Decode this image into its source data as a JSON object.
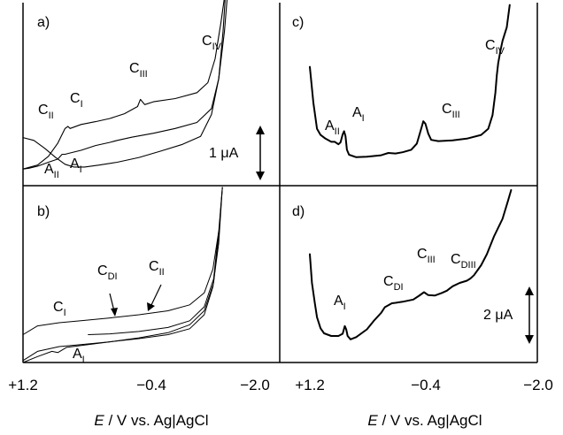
{
  "chart_data": [
    {
      "panel": "a)",
      "type": "line",
      "description_kind": "cyclic voltammogram",
      "x_range": [
        1.2,
        -2.0
      ],
      "scale_bar": {
        "label": "1 μA",
        "value_uA": 1
      },
      "series": [
        {
          "points": [
            [
              1.2,
              -0.28
            ],
            [
              1.05,
              -0.35
            ],
            [
              0.9,
              -0.55
            ],
            [
              0.75,
              -0.78
            ],
            [
              0.62,
              -0.95
            ],
            [
              0.5,
              -1.02
            ],
            [
              0.35,
              -1.02
            ],
            [
              0.15,
              -0.97
            ],
            [
              -0.1,
              -0.9
            ],
            [
              -0.4,
              -0.78
            ],
            [
              -0.7,
              -0.62
            ],
            [
              -1.0,
              -0.45
            ],
            [
              -1.25,
              -0.25
            ],
            [
              -1.4,
              0.3
            ],
            [
              -1.5,
              1.2
            ],
            [
              -1.56,
              2.4
            ],
            [
              -1.6,
              3.5
            ]
          ]
        },
        {
          "points": [
            [
              1.2,
              -1.07
            ],
            [
              1.0,
              -0.97
            ],
            [
              0.85,
              -0.75
            ],
            [
              0.72,
              -0.42
            ],
            [
              0.62,
              -0.05
            ],
            [
              0.58,
              0.0
            ],
            [
              0.55,
              -0.05
            ],
            [
              0.4,
              0.05
            ],
            [
              0.2,
              0.12
            ],
            [
              0.0,
              0.2
            ],
            [
              -0.2,
              0.32
            ],
            [
              -0.38,
              0.5
            ],
            [
              -0.42,
              0.68
            ],
            [
              -0.48,
              0.55
            ],
            [
              -0.6,
              0.62
            ],
            [
              -0.9,
              0.7
            ],
            [
              -1.2,
              0.85
            ],
            [
              -1.35,
              1.1
            ],
            [
              -1.45,
              1.7
            ],
            [
              -1.53,
              2.6
            ],
            [
              -1.6,
              3.5
            ]
          ]
        },
        {
          "points": [
            [
              1.2,
              -1.07
            ],
            [
              1.12,
              -1.05
            ],
            [
              1.0,
              -1.0
            ],
            [
              0.85,
              -0.9
            ],
            [
              0.72,
              -0.82
            ],
            [
              0.66,
              -0.7
            ],
            [
              0.62,
              -0.7
            ],
            [
              0.58,
              -0.68
            ],
            [
              0.4,
              -0.6
            ],
            [
              0.2,
              -0.48
            ],
            [
              0.0,
              -0.4
            ],
            [
              -0.1,
              -0.35
            ],
            [
              -0.3,
              -0.27
            ],
            [
              -0.6,
              -0.17
            ],
            [
              -0.9,
              -0.05
            ],
            [
              -1.2,
              0.1
            ],
            [
              -1.4,
              0.45
            ],
            [
              -1.5,
              1.2
            ],
            [
              -1.58,
              2.4
            ],
            [
              -1.62,
              3.3
            ]
          ]
        }
      ],
      "annotations": [
        {
          "base": "C",
          "sub": "II"
        },
        {
          "base": "C",
          "sub": "I"
        },
        {
          "base": "C",
          "sub": "III"
        },
        {
          "base": "C",
          "sub": "IV"
        },
        {
          "base": "A",
          "sub": "II"
        },
        {
          "base": "A",
          "sub": "I"
        }
      ]
    },
    {
      "panel": "b)",
      "type": "line",
      "description_kind": "cyclic voltammogram",
      "x_range": [
        1.2,
        -2.0
      ],
      "series": [
        {
          "points": [
            [
              1.2,
              -0.95
            ],
            [
              1.0,
              -0.72
            ],
            [
              0.7,
              -0.6
            ],
            [
              0.4,
              -0.55
            ],
            [
              0.0,
              -0.48
            ],
            [
              -0.4,
              -0.4
            ],
            [
              -0.8,
              -0.3
            ],
            [
              -1.1,
              -0.15
            ],
            [
              -1.3,
              0.2
            ],
            [
              -1.42,
              0.9
            ],
            [
              -1.5,
              2.0
            ],
            [
              -1.55,
              3.4
            ]
          ]
        },
        {
          "points": [
            [
              1.2,
              -0.3
            ],
            [
              1.0,
              -0.08
            ],
            [
              0.7,
              0.0
            ],
            [
              0.4,
              0.05
            ],
            [
              0.0,
              0.12
            ],
            [
              -0.4,
              0.2
            ],
            [
              -0.8,
              0.3
            ],
            [
              -1.1,
              0.45
            ],
            [
              -1.3,
              0.75
            ],
            [
              -1.42,
              1.35
            ],
            [
              -1.5,
              2.3
            ],
            [
              -1.55,
              3.4
            ]
          ]
        },
        {
          "points": [
            [
              1.2,
              -1.0
            ],
            [
              1.0,
              -0.85
            ],
            [
              0.8,
              -0.72
            ],
            [
              0.72,
              -0.75
            ],
            [
              0.6,
              -0.62
            ],
            [
              0.3,
              -0.55
            ],
            [
              0.0,
              -0.48
            ],
            [
              -0.4,
              -0.38
            ],
            [
              -0.8,
              -0.25
            ],
            [
              -1.1,
              -0.05
            ],
            [
              -1.3,
              0.3
            ],
            [
              -1.43,
              1.0
            ],
            [
              -1.5,
              2.2
            ],
            [
              -1.55,
              3.4
            ]
          ]
        },
        {
          "points": [
            [
              0.3,
              -0.3
            ],
            [
              0.0,
              -0.28
            ],
            [
              -0.4,
              -0.22
            ],
            [
              -0.8,
              -0.12
            ],
            [
              -1.1,
              0.05
            ],
            [
              -1.3,
              0.4
            ],
            [
              -1.43,
              1.1
            ],
            [
              -1.5,
              2.3
            ]
          ]
        }
      ],
      "annotations": [
        {
          "base": "C",
          "sub": "I"
        },
        {
          "base": "C",
          "sub": "DI"
        },
        {
          "base": "C",
          "sub": "II"
        },
        {
          "base": "A",
          "sub": "I"
        }
      ]
    },
    {
      "panel": "c)",
      "type": "line",
      "description_kind": "differential pulse voltammogram",
      "x_range": [
        1.2,
        -2.0
      ],
      "series": [
        {
          "points": [
            [
              1.2,
              3.55
            ],
            [
              1.15,
              2.1
            ],
            [
              1.1,
              1.05
            ],
            [
              1.05,
              0.8
            ],
            [
              0.98,
              0.65
            ],
            [
              0.9,
              0.52
            ],
            [
              0.85,
              0.52
            ],
            [
              0.8,
              0.42
            ],
            [
              0.77,
              0.5
            ],
            [
              0.74,
              0.82
            ],
            [
              0.72,
              0.95
            ],
            [
              0.7,
              0.75
            ],
            [
              0.68,
              0.2
            ],
            [
              0.65,
              0.0
            ],
            [
              0.55,
              -0.1
            ],
            [
              0.4,
              -0.08
            ],
            [
              0.2,
              -0.02
            ],
            [
              0.1,
              0.07
            ],
            [
              0.0,
              0.05
            ],
            [
              -0.1,
              0.1
            ],
            [
              -0.22,
              0.2
            ],
            [
              -0.3,
              0.45
            ],
            [
              -0.35,
              0.95
            ],
            [
              -0.39,
              1.35
            ],
            [
              -0.42,
              1.25
            ],
            [
              -0.46,
              0.85
            ],
            [
              -0.5,
              0.6
            ],
            [
              -0.6,
              0.55
            ],
            [
              -0.8,
              0.58
            ],
            [
              -1.0,
              0.65
            ],
            [
              -1.2,
              0.8
            ],
            [
              -1.3,
              1.05
            ],
            [
              -1.36,
              1.6
            ],
            [
              -1.4,
              2.5
            ],
            [
              -1.42,
              3.2
            ],
            [
              -1.44,
              3.7
            ],
            [
              -1.47,
              4.2
            ],
            [
              -1.5,
              4.6
            ],
            [
              -1.56,
              5.15
            ],
            [
              -1.6,
              6.05
            ]
          ]
        }
      ],
      "annotations": [
        {
          "base": "A",
          "sub": "II"
        },
        {
          "base": "A",
          "sub": "I"
        },
        {
          "base": "C",
          "sub": "III"
        },
        {
          "base": "C",
          "sub": "IV"
        }
      ]
    },
    {
      "panel": "d)",
      "type": "line",
      "description_kind": "differential pulse voltammogram",
      "x_range": [
        1.2,
        -2.0
      ],
      "scale_bar": {
        "label": "2 μA",
        "value_uA": 2
      },
      "series": [
        {
          "points": [
            [
              1.2,
              3.7
            ],
            [
              1.17,
              2.4
            ],
            [
              1.13,
              1.5
            ],
            [
              1.1,
              0.85
            ],
            [
              1.05,
              0.35
            ],
            [
              1.0,
              0.12
            ],
            [
              0.9,
              0.0
            ],
            [
              0.8,
              0.0
            ],
            [
              0.74,
              0.1
            ],
            [
              0.71,
              0.45
            ],
            [
              0.69,
              0.3
            ],
            [
              0.67,
              0.0
            ],
            [
              0.63,
              -0.15
            ],
            [
              0.55,
              -0.05
            ],
            [
              0.4,
              0.3
            ],
            [
              0.3,
              0.7
            ],
            [
              0.2,
              1.05
            ],
            [
              0.15,
              1.3
            ],
            [
              0.05,
              1.48
            ],
            [
              0.0,
              1.5
            ],
            [
              -0.1,
              1.55
            ],
            [
              -0.25,
              1.65
            ],
            [
              -0.33,
              1.82
            ],
            [
              -0.4,
              1.98
            ],
            [
              -0.46,
              1.85
            ],
            [
              -0.55,
              1.83
            ],
            [
              -0.65,
              1.95
            ],
            [
              -0.72,
              2.05
            ],
            [
              -0.8,
              2.25
            ],
            [
              -0.9,
              2.4
            ],
            [
              -1.0,
              2.5
            ],
            [
              -1.05,
              2.6
            ],
            [
              -1.1,
              2.75
            ],
            [
              -1.2,
              3.2
            ],
            [
              -1.28,
              3.7
            ],
            [
              -1.38,
              4.5
            ],
            [
              -1.5,
              5.3
            ],
            [
              -1.58,
              6.15
            ],
            [
              -1.62,
              6.6
            ]
          ]
        }
      ],
      "annotations": [
        {
          "base": "A",
          "sub": "I"
        },
        {
          "base": "C",
          "sub": "DI"
        },
        {
          "base": "C",
          "sub": "III"
        },
        {
          "base": "C",
          "sub": "DIII"
        }
      ]
    }
  ],
  "x_tick_labels": [
    "+1.2",
    "−0.4",
    "−2.0"
  ],
  "x_axis_label": {
    "italic": "E",
    "rest": " / V vs. Ag|AgCl"
  }
}
